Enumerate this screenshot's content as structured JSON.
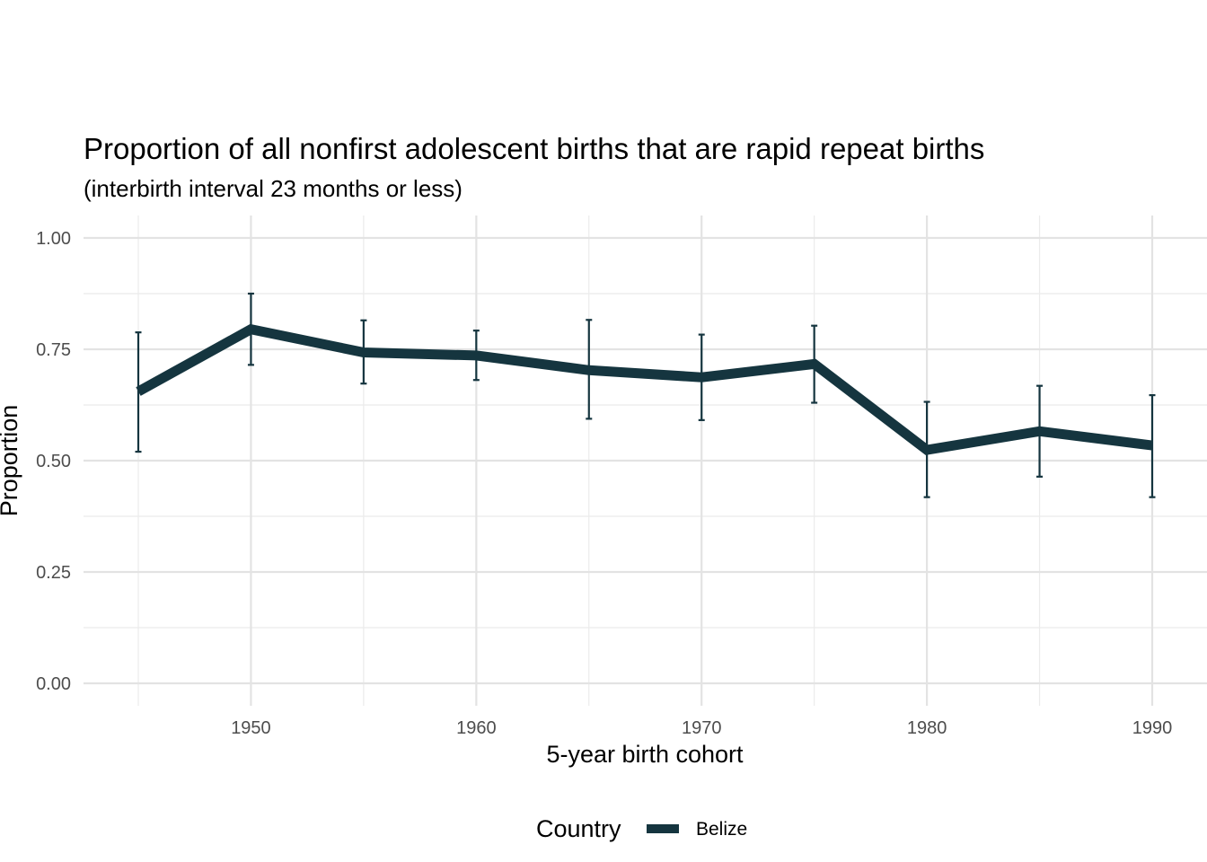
{
  "chart_data": {
    "type": "line",
    "title": "Proportion of all nonfirst adolescent births that are rapid repeat births",
    "subtitle": "(interbirth interval 23 months or less)",
    "xlabel": "5-year birth cohort",
    "ylabel": "Proportion",
    "xlim": [
      1945,
      1990
    ],
    "ylim": [
      0,
      1
    ],
    "x_ticks": [
      1950,
      1960,
      1970,
      1980,
      1990
    ],
    "x_tick_labels": [
      "1950",
      "1960",
      "1970",
      "1980",
      "1990"
    ],
    "y_ticks": [
      0,
      0.25,
      0.5,
      0.75,
      1
    ],
    "y_tick_labels": [
      "0.00",
      "0.25",
      "0.50",
      "0.75",
      "1.00"
    ],
    "grid": true,
    "legend": {
      "title": "Country",
      "position": "bottom"
    },
    "series": [
      {
        "name": "Belize",
        "color": "#15353f",
        "x": [
          1945,
          1950,
          1955,
          1960,
          1965,
          1970,
          1975,
          1980,
          1985,
          1990
        ],
        "y": [
          0.655,
          0.795,
          0.743,
          0.736,
          0.703,
          0.687,
          0.717,
          0.524,
          0.566,
          0.534
        ],
        "lower": [
          0.52,
          0.715,
          0.673,
          0.681,
          0.594,
          0.591,
          0.63,
          0.418,
          0.464,
          0.418
        ],
        "upper": [
          0.788,
          0.875,
          0.815,
          0.792,
          0.816,
          0.783,
          0.803,
          0.632,
          0.668,
          0.647
        ]
      }
    ]
  }
}
